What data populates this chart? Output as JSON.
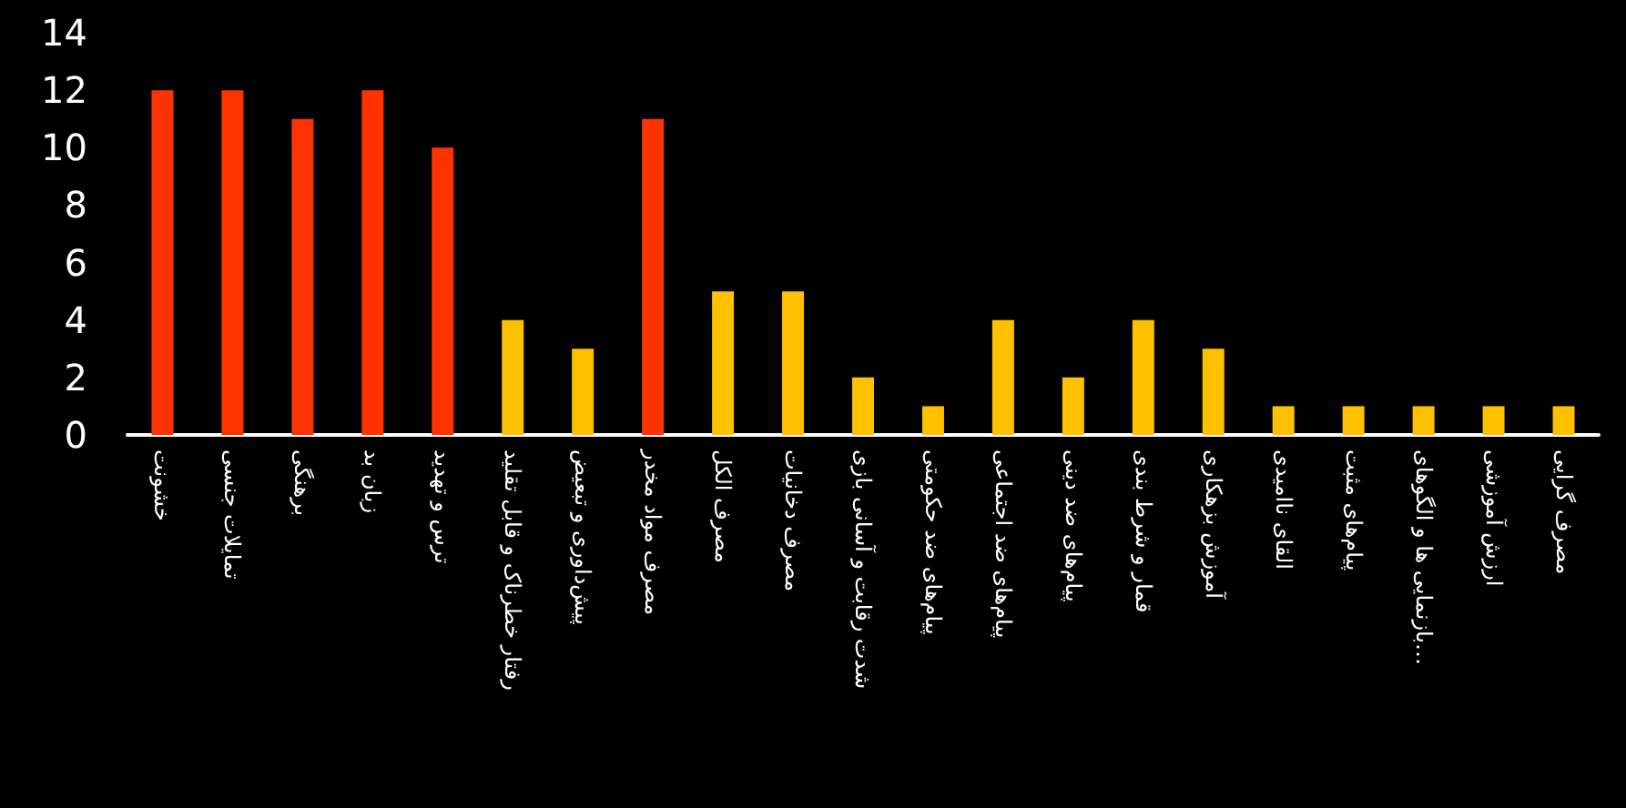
{
  "chart_data": {
    "type": "bar",
    "categories": [
      "خشونت",
      "تمایلات جنسی",
      "برهنگی",
      "زبان بد",
      "ترس و تهدید",
      "رفتار خطرناک و قابل تقلید",
      "پیش‌داوری و تبعیض",
      "مصرف مواد مخدر",
      "مصرف الکل",
      "مصرف دخانیات",
      "شدت رقابت و آسانی بازی",
      "پیام‌های ضد حکومتی",
      "پیام‌های ضد اجتماعی",
      "پیام‌های ضد دینی",
      "قمار و شرط بندی",
      "آموزش بزهکاری",
      "القای ناامیدی",
      "پیام‌های مثبت",
      "بازنمایی ها و الگوهای…",
      "ارزش آموزشی",
      "مصرف گرایی"
    ],
    "values": [
      12,
      12,
      11,
      12,
      10,
      4,
      3,
      11,
      5,
      5,
      2,
      1,
      4,
      2,
      4,
      3,
      1,
      1,
      1,
      1,
      1
    ],
    "colors": [
      "#ff3300",
      "#ff3300",
      "#ff3300",
      "#ff3300",
      "#ff3300",
      "#ffc000",
      "#ffc000",
      "#ff3300",
      "#ffc000",
      "#ffc000",
      "#ffc000",
      "#ffc000",
      "#ffc000",
      "#ffc000",
      "#ffc000",
      "#ffc000",
      "#ffc000",
      "#ffc000",
      "#ffc000",
      "#ffc000",
      "#ffc000"
    ],
    "ylim": [
      0,
      14
    ],
    "yticks": [
      0,
      2,
      4,
      6,
      8,
      10,
      12,
      14
    ]
  }
}
